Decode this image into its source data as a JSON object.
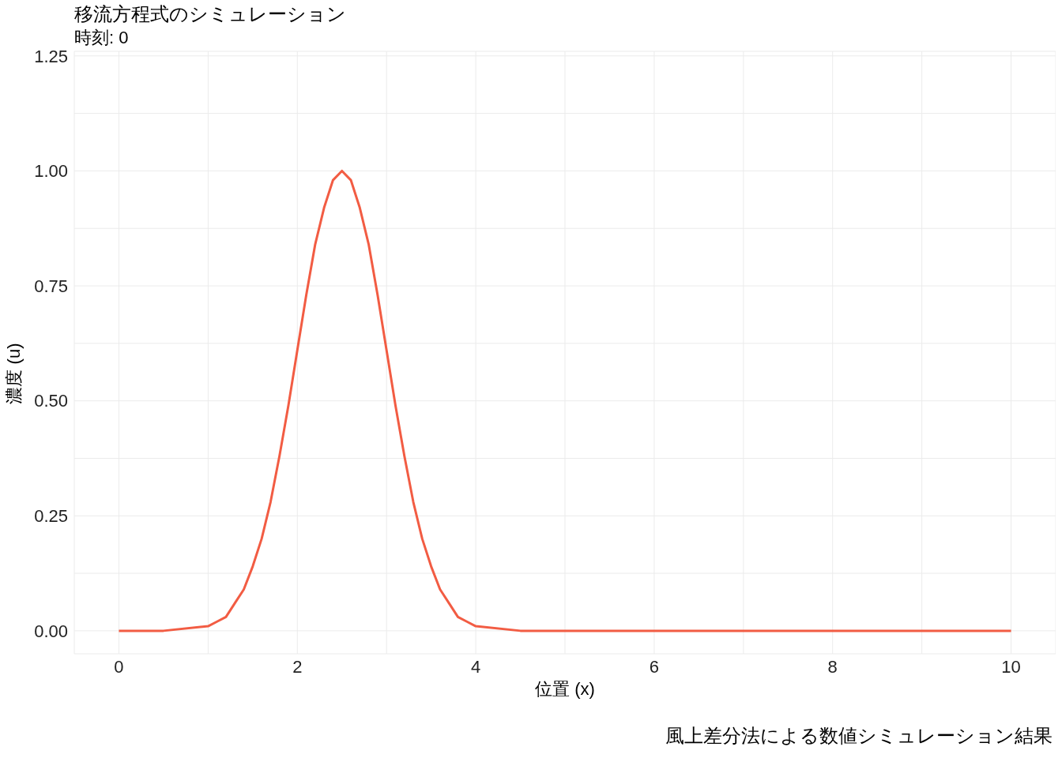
{
  "chart_data": {
    "type": "line",
    "title": "移流方程式のシミュレーション",
    "subtitle": "時刻: 0",
    "xlabel": "位置 (x)",
    "ylabel": "濃度 (u)",
    "annotations": [
      "風上差分法による数値シミュレーション結果"
    ],
    "x": [
      0,
      0.5,
      1.0,
      1.1,
      1.2,
      1.3,
      1.4,
      1.5,
      1.6,
      1.7,
      1.8,
      1.9,
      2.0,
      2.1,
      2.2,
      2.3,
      2.4,
      2.5,
      2.6,
      2.7,
      2.8,
      2.9,
      3.0,
      3.1,
      3.2,
      3.3,
      3.4,
      3.5,
      3.6,
      3.7,
      3.8,
      3.9,
      4.0,
      4.5,
      5,
      6,
      7,
      8,
      9,
      10
    ],
    "series": [
      {
        "color": "#f25c43",
        "values": [
          0,
          0,
          0.01,
          0.02,
          0.03,
          0.06,
          0.09,
          0.14,
          0.2,
          0.28,
          0.38,
          0.49,
          0.61,
          0.73,
          0.84,
          0.92,
          0.98,
          1,
          0.98,
          0.92,
          0.84,
          0.73,
          0.61,
          0.49,
          0.38,
          0.28,
          0.2,
          0.14,
          0.09,
          0.06,
          0.03,
          0.02,
          0.01,
          0,
          0,
          0,
          0,
          0,
          0,
          0
        ]
      }
    ],
    "xlim": [
      -0.5,
      10.5
    ],
    "ylim": [
      -0.05,
      1.26
    ],
    "xticks": [
      0,
      {
        "value": 1,
        "label": null
      },
      2,
      {
        "value": 3,
        "label": null
      },
      4,
      {
        "value": 5,
        "label": null
      },
      6,
      {
        "value": 7,
        "label": null
      },
      8,
      {
        "value": 9,
        "label": null
      },
      10
    ],
    "yticks": [
      {
        "value": 0,
        "label": "0.00"
      },
      {
        "value": 0.125,
        "label": null
      },
      {
        "value": 0.25,
        "label": "0.25"
      },
      {
        "value": 0.375,
        "label": null
      },
      {
        "value": 0.5,
        "label": "0.50"
      },
      {
        "value": 0.625,
        "label": null
      },
      {
        "value": 0.75,
        "label": "0.75"
      },
      {
        "value": 0.875,
        "label": null
      },
      {
        "value": 1,
        "label": "1.00"
      },
      {
        "value": 1.125,
        "label": null
      },
      {
        "value": 1.25,
        "label": "1.25"
      }
    ],
    "grid": true,
    "legend": false,
    "marker": "none",
    "line_style": "solid"
  }
}
